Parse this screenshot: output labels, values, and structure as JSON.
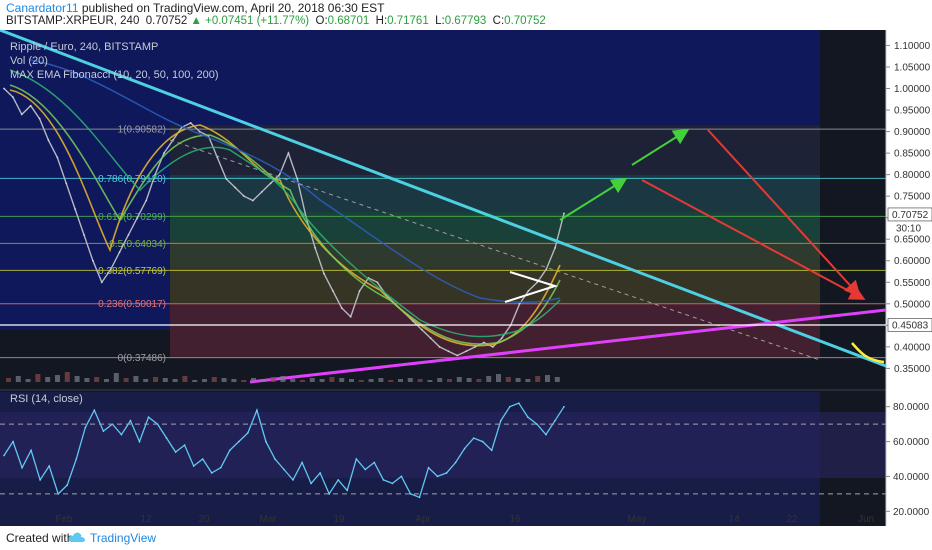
{
  "header": {
    "author": "Canardator11",
    "published": " published on TradingView.com, April 20, 2018 06:30 EST",
    "symbol": "BITSTAMP:XRPEUR, 240",
    "last": "0.70752",
    "change": "+0.07451 (+11.77%)",
    "o_label": "O:",
    "o": "0.68701",
    "h_label": "H:",
    "h": "0.71761",
    "l_label": "L:",
    "l": "0.67793",
    "c_label": "C:",
    "c": "0.70752"
  },
  "footer": {
    "created": "Created with",
    "brand": "TradingView"
  },
  "legends": {
    "main": "Ripple / Euro, 240, BITSTAMP",
    "vol": "Vol (20)",
    "ema": "MAX EMA Fibonacci (10, 20, 50, 100, 200)",
    "rsi": "RSI (14, close)"
  },
  "price_tag": {
    "value": "0.70752",
    "countdown": "30:10"
  },
  "colors": {
    "panel_bg": "#131722",
    "fib_blue": "#0d1a6e",
    "trendline_cyan": "#4dd0e1",
    "support_magenta": "#e040fb",
    "arrow_green": "#43d13a",
    "arrow_red": "#e53935",
    "rsi_line": "#5ec8f2",
    "price_tag": "#ffffff"
  },
  "chart_data": [
    {
      "type": "line",
      "title": "Ripple / Euro, 240, BITSTAMP",
      "x_ticks": [
        "Feb",
        "12",
        "20",
        "Mar",
        "19",
        "Apr",
        "16",
        "May",
        "14",
        "22",
        "Jun"
      ],
      "y_ticks": [
        1.1,
        1.05,
        1.0,
        0.95,
        0.9,
        0.85,
        0.8,
        0.75,
        0.7,
        0.65,
        0.6,
        0.55,
        0.5,
        0.45,
        0.4,
        0.35
      ],
      "y_tick_labels": [
        "1.10000",
        "1.05000",
        "1.00000",
        "0.95000",
        "0.90000",
        "0.85000",
        "0.80000",
        "0.75000",
        "0.70000",
        "0.65000",
        "0.60000",
        "0.55000",
        "0.50000",
        "0.45000",
        "0.40000",
        "0.35000"
      ],
      "ylim": [
        0.33,
        1.115
      ],
      "log_scale": false,
      "fib_levels": [
        {
          "label": "1(0.90582)",
          "value": 0.90582
        },
        {
          "label": "0.786(0.79120)",
          "value": 0.7912
        },
        {
          "label": "0.618(0.70299)",
          "value": 0.70299
        },
        {
          "label": "0.5(0.64034)",
          "value": 0.64034
        },
        {
          "label": "0.382(0.57769)",
          "value": 0.57769
        },
        {
          "label": "0.236(0.50017)",
          "value": 0.50017
        },
        {
          "label": "0(0.37486)",
          "value": 0.37486
        }
      ],
      "horizontal_line": {
        "label": "0.45083",
        "value": 0.45083
      },
      "series": [
        {
          "name": "XRPEUR",
          "values": [
            1.0,
            0.98,
            0.94,
            0.96,
            0.93,
            0.88,
            0.84,
            0.78,
            0.72,
            0.66,
            0.6,
            0.55,
            0.58,
            0.62,
            0.66,
            0.7,
            0.74,
            0.8,
            0.85,
            0.88,
            0.91,
            0.92,
            0.9,
            0.89,
            0.84,
            0.79,
            0.77,
            0.75,
            0.74,
            0.76,
            0.78,
            0.8,
            0.85,
            0.79,
            0.7,
            0.63,
            0.57,
            0.53,
            0.49,
            0.47,
            0.53,
            0.56,
            0.55,
            0.52,
            0.5,
            0.48,
            0.46,
            0.44,
            0.42,
            0.4,
            0.39,
            0.38,
            0.39,
            0.4,
            0.41,
            0.4,
            0.42,
            0.45,
            0.5,
            0.53,
            0.55,
            0.58,
            0.63,
            0.71
          ]
        }
      ]
    },
    {
      "type": "line",
      "title": "RSI (14, close)",
      "y_ticks": [
        80,
        60,
        40,
        20
      ],
      "y_tick_labels": [
        "80.0000",
        "60.0000",
        "40.0000",
        "20.0000"
      ],
      "ylim": [
        15,
        85
      ],
      "bands": [
        70,
        30
      ],
      "series": [
        {
          "name": "RSI",
          "values": [
            52,
            60,
            45,
            55,
            38,
            46,
            30,
            35,
            50,
            68,
            78,
            66,
            70,
            64,
            72,
            60,
            74,
            70,
            62,
            54,
            58,
            46,
            50,
            42,
            45,
            55,
            60,
            65,
            78,
            60,
            50,
            44,
            38,
            48,
            36,
            42,
            30,
            38,
            32,
            50,
            44,
            48,
            38,
            36,
            40,
            30,
            28,
            45,
            40,
            42,
            48,
            56,
            62,
            60,
            55,
            72,
            80,
            82,
            74,
            70,
            64,
            72,
            80
          ]
        }
      ]
    }
  ]
}
